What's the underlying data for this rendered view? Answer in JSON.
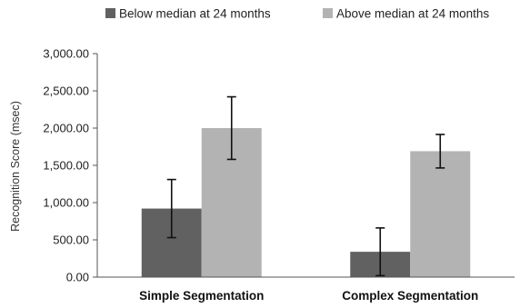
{
  "chart_data": {
    "type": "bar",
    "categories": [
      "Simple Segmentation",
      "Complex Segmentation"
    ],
    "series": [
      {
        "name": "Below median at 24 months",
        "color": "#616161",
        "values": [
          920,
          340
        ],
        "error": [
          390,
          320
        ]
      },
      {
        "name": "Above median at 24 months",
        "color": "#b3b3b3",
        "values": [
          2000,
          1690
        ],
        "error": [
          420,
          225
        ]
      }
    ],
    "ylabel": "Recognition Score (msec)",
    "xlabel": "",
    "ylim": [
      0,
      3000
    ],
    "yticks": [
      0,
      500,
      1000,
      1500,
      2000,
      2500,
      3000
    ],
    "ytick_labels": [
      "0.00",
      "500.00",
      "1,000.00",
      "1,500.00",
      "2,000.00",
      "2,500.00",
      "3,000.00"
    ],
    "grid": false,
    "legend_position": "top"
  }
}
